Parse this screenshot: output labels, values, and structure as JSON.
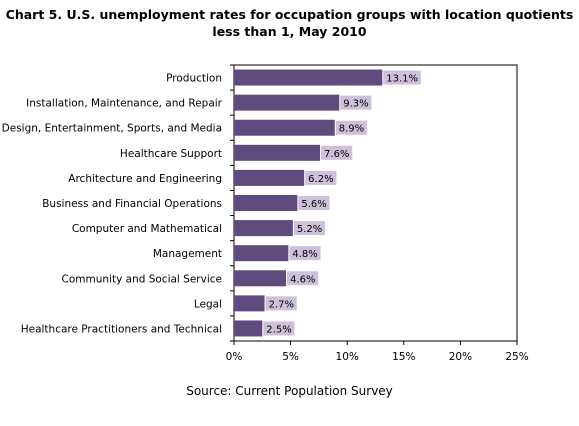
{
  "chart_data": {
    "type": "bar",
    "orientation": "horizontal",
    "title_line1": "Chart 5. U.S. unemployment rates for occupation groups with location quotients",
    "title_line2": "less than 1, May 2010",
    "source": "Source: Current Population Survey",
    "categories": [
      "Production",
      "Installation, Maintenance, and Repair",
      "Arts, Design, Entertainment, Sports, and Media",
      "Healthcare Support",
      "Architecture and Engineering",
      "Business and Financial Operations",
      "Computer and Mathematical",
      "Management",
      "Community and Social Service",
      "Legal",
      "Healthcare Practitioners and Technical"
    ],
    "values": [
      13.1,
      9.3,
      8.9,
      7.6,
      6.2,
      5.6,
      5.2,
      4.8,
      4.6,
      2.7,
      2.5
    ],
    "data_labels": [
      "13.1%",
      "9.3%",
      "8.9%",
      "7.6%",
      "6.2%",
      "5.6%",
      "5.2%",
      "4.8%",
      "4.6%",
      "2.7%",
      "2.5%"
    ],
    "xlim": [
      0,
      25
    ],
    "xticks": [
      "0%",
      "5%",
      "10%",
      "15%",
      "20%",
      "25%"
    ],
    "grid": false,
    "colors": {
      "bar": "#5f4b7d",
      "label_bg": "#ccc0da"
    }
  }
}
